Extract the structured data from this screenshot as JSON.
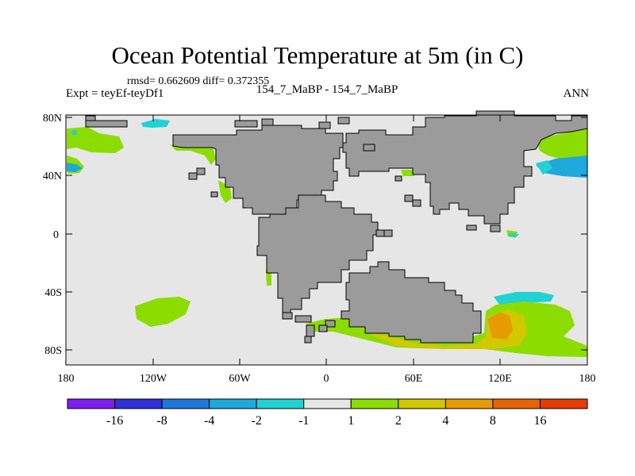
{
  "title": "Ocean Potential Temperature at 5m (in C)",
  "stats_text": "rmsd= 0.662609 diff= 0.372355",
  "expt_text": "Expt = teyEf-teyDf1",
  "center_label": "154_7_MaBP - 154_7_MaBP",
  "season": "ANN",
  "y_ticks": [
    "80N",
    "40N",
    "0",
    "40S",
    "80S"
  ],
  "x_ticks": [
    "180",
    "120W",
    "60W",
    "0",
    "60E",
    "120E",
    "180"
  ],
  "colorbar": {
    "labels": [
      "-16",
      "-8",
      "-4",
      "-2",
      "-1",
      "1",
      "2",
      "4",
      "8",
      "16"
    ],
    "colors": [
      "#7f1ef0",
      "#3030d8",
      "#1e78dc",
      "#1ea8dc",
      "#20d2d2",
      "#e6e6e6",
      "#8cdc00",
      "#d2c800",
      "#e69b00",
      "#e66400",
      "#e63c00"
    ]
  },
  "colors": {
    "ocean_bg": "#e6e6e6",
    "land": "#9b9b9b",
    "green": "#8cdc00",
    "yellow": "#d2c800",
    "orange": "#e69b00",
    "cyan": "#20d2d2",
    "lightblue": "#1ea8dc"
  }
}
